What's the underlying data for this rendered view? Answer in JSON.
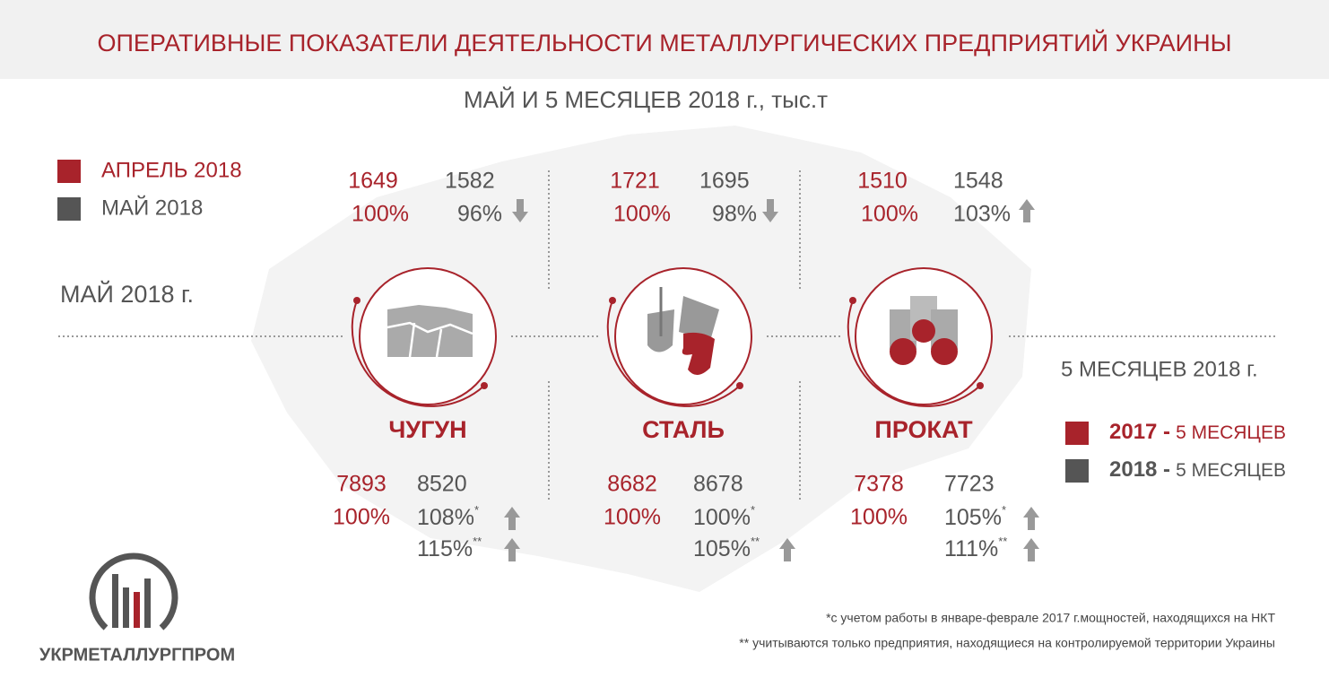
{
  "header": {
    "title": "ОПЕРАТИВНЫЕ ПОКАЗАТЕЛИ ДЕЯТЕЛЬНОСТИ МЕТАЛЛУРГИЧЕСКИХ ПРЕДПРИЯТИЙ УКРАИНЫ",
    "subtitle": "МАЙ И 5 МЕСЯЦЕВ 2018 г., тыс.т"
  },
  "legend_month": [
    {
      "label": "АПРЕЛЬ 2018",
      "color": "#a8232b"
    },
    {
      "label": "МАЙ 2018",
      "color": "#555555"
    }
  ],
  "section_month": "МАЙ 2018 г.",
  "section_five": "5 МЕСЯЦЕВ 2018 г.",
  "legend_five": [
    {
      "year": "2017 -",
      "label": "5 МЕСЯЦЕВ",
      "color": "#a8232b"
    },
    {
      "year": "2018 -",
      "label": "5 МЕСЯЦЕВ",
      "color": "#555555"
    }
  ],
  "products": [
    {
      "name": "ЧУГУН",
      "month": {
        "april": 1649,
        "april_pct": "100%",
        "may": 1582,
        "may_pct": "96%",
        "trend": "down"
      },
      "five": {
        "prev": 7893,
        "prev_pct": "100%",
        "curr": 8520,
        "pcts": [
          {
            "pct": "108%",
            "note": "*",
            "trend": "up"
          },
          {
            "pct": "115%",
            "note": "**",
            "trend": "up"
          }
        ]
      }
    },
    {
      "name": "СТАЛЬ",
      "month": {
        "april": 1721,
        "april_pct": "100%",
        "may": 1695,
        "may_pct": "98%",
        "trend": "down"
      },
      "five": {
        "prev": 8682,
        "prev_pct": "100%",
        "curr": 8678,
        "pcts": [
          {
            "pct": "100%",
            "note": "*",
            "trend": null
          },
          {
            "pct": "105%",
            "note": "**",
            "trend": "up"
          }
        ]
      }
    },
    {
      "name": "ПРОКАТ",
      "month": {
        "april": 1510,
        "april_pct": "100%",
        "may": 1548,
        "may_pct": "103%",
        "trend": "up"
      },
      "five": {
        "prev": 7378,
        "prev_pct": "100%",
        "curr": 7723,
        "pcts": [
          {
            "pct": "105%",
            "note": "*",
            "trend": "up"
          },
          {
            "pct": "111%",
            "note": "**",
            "trend": "up"
          }
        ]
      }
    }
  ],
  "footnotes": [
    "*с учетом работы в январе-феврале 2017 г.мощностей, находящихся на НКТ",
    "** учитываются только предприятия, находящиеся на контролируемой территории Украины"
  ],
  "logo": "УКРМЕТАЛЛУРГПРОМ"
}
